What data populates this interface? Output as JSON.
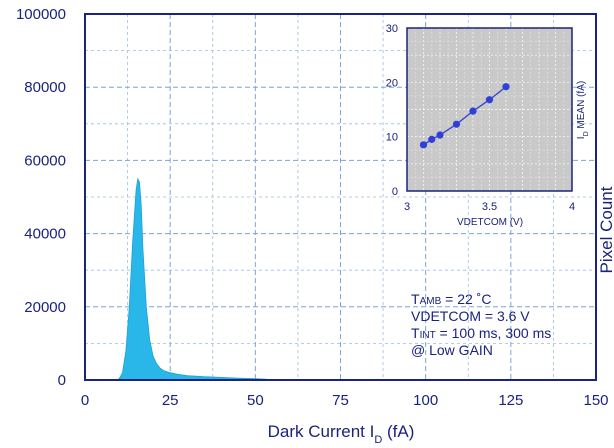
{
  "chart_data": [
    {
      "type": "area",
      "xlabel": "Dark Current I",
      "xlabel_sub": "D",
      "xlabel_unit": " (fA)",
      "ylabel": "Pixel Count",
      "xlim": [
        0,
        150
      ],
      "ylim": [
        0,
        100000
      ],
      "xticks": [
        "0",
        "25",
        "50",
        "75",
        "100",
        "125",
        "150"
      ],
      "yticks": [
        "0",
        "20000",
        "40000",
        "60000",
        "80000",
        "100000"
      ],
      "grid": true,
      "colors": {
        "fill": "#29b6e8",
        "stroke": "#1fa3d6",
        "axis": "#1a237e",
        "grid": "#7aa6d8"
      },
      "x": [
        9,
        10,
        11,
        12,
        13,
        14,
        15,
        15.5,
        16,
        16.5,
        17,
        18,
        19,
        20,
        21,
        22,
        23,
        25,
        27,
        30,
        35,
        40,
        45,
        50,
        53,
        55
      ],
      "values": [
        0,
        300,
        2000,
        8000,
        20000,
        38000,
        52000,
        55000,
        54000,
        48000,
        36000,
        20000,
        11000,
        6500,
        4500,
        3300,
        2600,
        2000,
        1600,
        1200,
        900,
        700,
        500,
        350,
        250,
        0
      ],
      "annotations": [
        {
          "main": "T",
          "sub": "AMB",
          "rest": " = 22 ˚C"
        },
        {
          "main": "VDETCOM = 3.6 V",
          "sub": "",
          "rest": ""
        },
        {
          "main": "T",
          "sub": "INT",
          "rest": " = 100 ms, 300 ms"
        },
        {
          "main": "@ Low GAIN",
          "sub": "",
          "rest": ""
        }
      ]
    },
    {
      "type": "line",
      "xlabel": "VDETCOM (V)",
      "ylabel": "I",
      "ylabel_sub": "D",
      "ylabel_unit": " MEAN (fA)",
      "xlim": [
        3,
        4
      ],
      "ylim": [
        0,
        30
      ],
      "xticks": [
        "3",
        "3.5",
        "4"
      ],
      "yticks": [
        "0",
        "10",
        "20",
        "30"
      ],
      "grid": true,
      "colors": {
        "line": "#2f3fd8",
        "marker": "#2f3fd8",
        "background": "#c9c9c9"
      },
      "x": [
        3.1,
        3.15,
        3.2,
        3.3,
        3.4,
        3.5,
        3.6
      ],
      "values": [
        8.5,
        9.5,
        10.3,
        12.3,
        14.7,
        16.8,
        19.2
      ]
    }
  ]
}
